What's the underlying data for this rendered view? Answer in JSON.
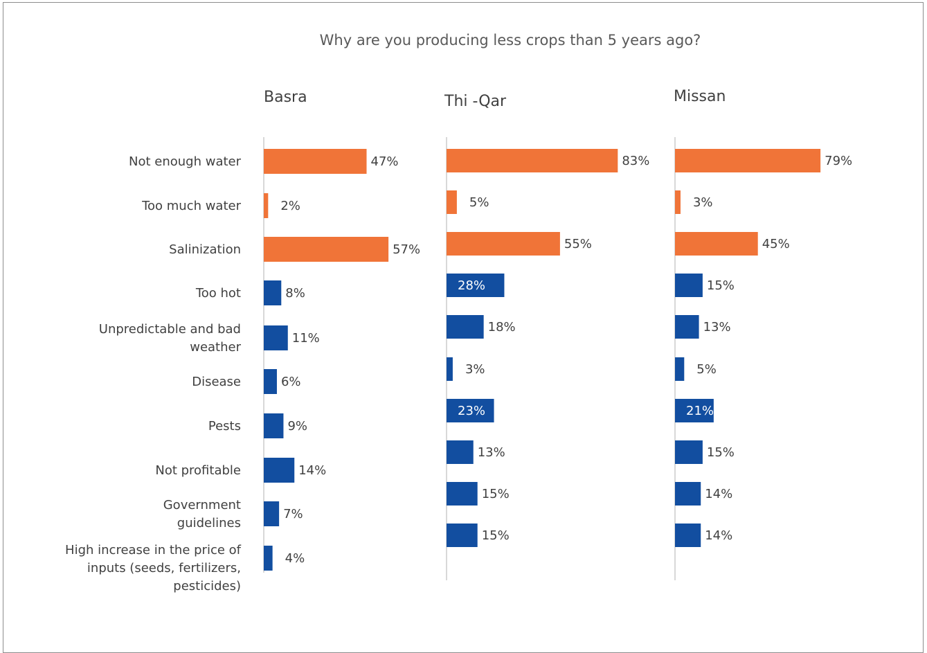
{
  "colors": {
    "water": "#f07438",
    "other": "#124ea0",
    "axis": "#bfbfbf",
    "text": "#404040"
  },
  "chart_data": {
    "type": "bar",
    "orientation": "horizontal",
    "title": "Why are you producing less crops than 5 years ago?",
    "categories": [
      "Not enough water",
      "Too much water",
      "Salinization",
      "Too hot",
      "Unpredictable and bad weather",
      "Disease",
      "Pests",
      "Not profitable",
      "Government guidelines",
      "High increase in the price of inputs (seeds, fertilizers, pesticides)"
    ],
    "category_lines": [
      [
        "Not enough water"
      ],
      [
        "Too much water"
      ],
      [
        "Salinization"
      ],
      [
        "Too hot"
      ],
      [
        "Unpredictable and bad",
        "weather"
      ],
      [
        "Disease"
      ],
      [
        "Pests"
      ],
      [
        "Not profitable"
      ],
      [
        "Government",
        "guidelines"
      ],
      [
        "High increase in the price of",
        "inputs (seeds, fertilizers,",
        "pesticides)"
      ]
    ],
    "unit": "%",
    "panels": [
      {
        "name": "Basra",
        "values": [
          47,
          2,
          57,
          8,
          11,
          6,
          9,
          14,
          7,
          4
        ],
        "labels": [
          "47%",
          "2%",
          "57%",
          "8%",
          "11%",
          "6%",
          "9%",
          "14%",
          "7%",
          "4%"
        ],
        "label_inside": [
          false,
          false,
          false,
          false,
          false,
          false,
          false,
          false,
          false,
          false
        ]
      },
      {
        "name": "Thi -Qar",
        "values": [
          83,
          5,
          55,
          28,
          18,
          3,
          23,
          13,
          15,
          15
        ],
        "labels": [
          "83%",
          "5%",
          "55%",
          "28%",
          "18%",
          "3%",
          "23%",
          "13%",
          "15%",
          "15%"
        ],
        "label_inside": [
          false,
          false,
          false,
          true,
          false,
          false,
          true,
          false,
          false,
          false
        ]
      },
      {
        "name": "Missan",
        "values": [
          79,
          3,
          45,
          15,
          13,
          5,
          21,
          15,
          14,
          14
        ],
        "labels": [
          "79%",
          "3%",
          "45%",
          "15%",
          "13%",
          "5%",
          "21%",
          "15%",
          "14%",
          "14%"
        ],
        "label_inside": [
          false,
          false,
          false,
          false,
          false,
          false,
          true,
          false,
          false,
          false
        ]
      }
    ],
    "water_related_count": 3
  }
}
